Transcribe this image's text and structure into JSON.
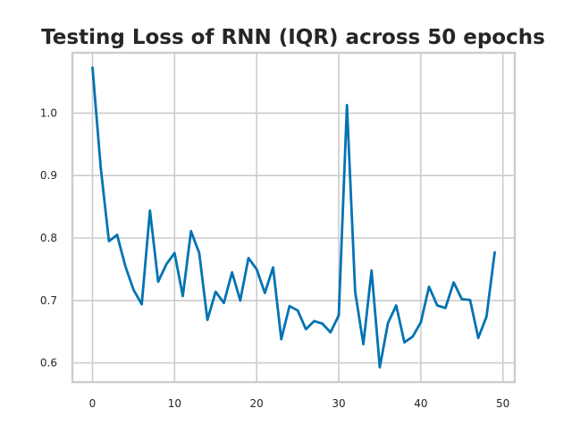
{
  "chart_data": {
    "type": "line",
    "title": "Testing Loss of RNN (IQR) across 50 epochs",
    "xlabel": "",
    "ylabel": "",
    "xlim": [
      -2.45,
      51.45
    ],
    "ylim": [
      0.5693,
      1.0966
    ],
    "grid": true,
    "x_ticks": [
      0,
      10,
      20,
      30,
      40,
      50
    ],
    "x_tick_labels": [
      "0",
      "10",
      "20",
      "30",
      "40",
      "50"
    ],
    "y_ticks": [
      0.6,
      0.7,
      0.8,
      0.9,
      1.0
    ],
    "y_tick_labels": [
      "0.6",
      "0.7",
      "0.8",
      "0.9",
      "1.0"
    ],
    "series": [
      {
        "name": "Testing Loss",
        "color": "#0173b2",
        "x": [
          0,
          1,
          2,
          3,
          4,
          5,
          6,
          7,
          8,
          9,
          10,
          11,
          12,
          13,
          14,
          15,
          16,
          17,
          18,
          19,
          20,
          21,
          22,
          23,
          24,
          25,
          26,
          27,
          28,
          29,
          30,
          31,
          32,
          33,
          34,
          35,
          36,
          37,
          38,
          39,
          40,
          41,
          42,
          43,
          44,
          45,
          46,
          47,
          48,
          49
        ],
        "values": [
          1.073,
          0.913,
          0.795,
          0.805,
          0.755,
          0.717,
          0.694,
          0.844,
          0.73,
          0.758,
          0.776,
          0.707,
          0.811,
          0.776,
          0.669,
          0.714,
          0.696,
          0.745,
          0.7,
          0.768,
          0.75,
          0.712,
          0.753,
          0.638,
          0.691,
          0.684,
          0.654,
          0.667,
          0.663,
          0.649,
          0.676,
          1.013,
          0.714,
          0.63,
          0.748,
          0.593,
          0.664,
          0.692,
          0.633,
          0.642,
          0.665,
          0.722,
          0.692,
          0.688,
          0.729,
          0.702,
          0.701,
          0.64,
          0.674,
          0.777
        ]
      }
    ]
  },
  "colors": {
    "grid": "#cccccc",
    "spine": "#cccccc",
    "line": "#0173b2"
  }
}
